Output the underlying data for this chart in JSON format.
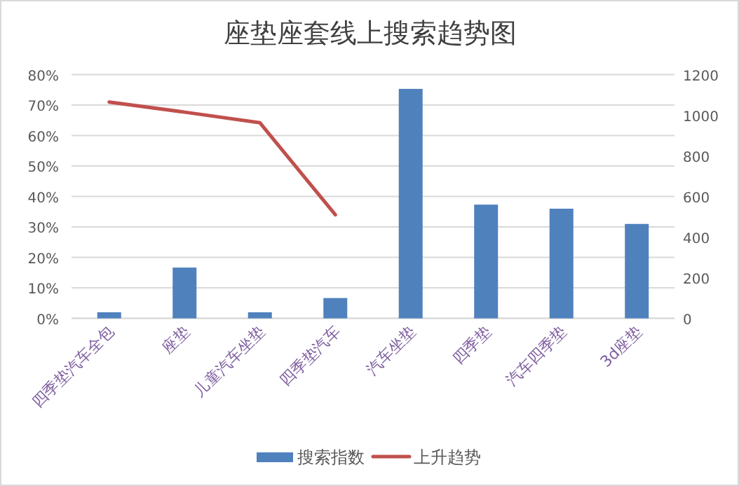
{
  "chart_data": {
    "type": "bar",
    "title": "座垫座套线上搜索趋势图",
    "categories": [
      "四季垫汽车全包",
      "座垫",
      "儿童汽车坐垫",
      "四季垫汽车",
      "汽车坐垫",
      "四季垫",
      "汽车四季垫",
      "3d座垫"
    ],
    "series": [
      {
        "name": "搜索指数",
        "axis": "y2",
        "color": "#4f81bd",
        "values": [
          30,
          250,
          30,
          100,
          1130,
          560,
          540,
          465
        ]
      },
      {
        "name": "上升趋势",
        "type": "line",
        "axis": "y",
        "color": "#c0504d",
        "values": [
          71,
          67.7,
          64.2,
          34,
          null,
          null,
          null,
          null
        ]
      }
    ],
    "ylim": [
      0,
      80
    ],
    "yticks": [
      {
        "value": 0,
        "label": "0%"
      },
      {
        "value": 10,
        "label": "10%"
      },
      {
        "value": 20,
        "label": "20%"
      },
      {
        "value": 30,
        "label": "30%"
      },
      {
        "value": 40,
        "label": "40%"
      },
      {
        "value": 50,
        "label": "50%"
      },
      {
        "value": 60,
        "label": "60%"
      },
      {
        "value": 70,
        "label": "70%"
      },
      {
        "value": 80,
        "label": "80%"
      }
    ],
    "y2lim": [
      0,
      1200
    ],
    "y2ticks": [
      0,
      200,
      400,
      600,
      800,
      1000,
      1200
    ],
    "grid": "y",
    "legend": "bottom"
  }
}
